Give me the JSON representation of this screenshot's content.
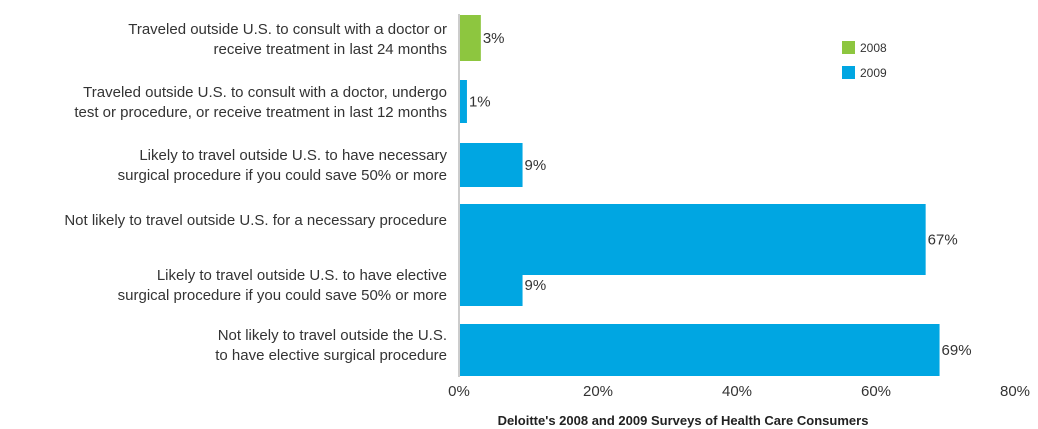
{
  "chart_data": {
    "type": "bar",
    "orientation": "horizontal",
    "title": "",
    "xlabel": "",
    "ylabel": "",
    "xlim": [
      0,
      80
    ],
    "x_ticks": [
      "0%",
      "20%",
      "40%",
      "60%",
      "80%"
    ],
    "x_tick_values": [
      0,
      20,
      40,
      60,
      80
    ],
    "value_suffix": "%",
    "grid": false,
    "legend_position": "top-right",
    "legend": [
      {
        "name": "2008",
        "color": "#8dc63f"
      },
      {
        "name": "2009",
        "color": "#00a6e2"
      }
    ],
    "bars": [
      {
        "label_lines": [
          "Traveled outside U.S. to consult with a doctor or",
          "receive treatment in last 24 months"
        ],
        "value": 3,
        "series": "2008",
        "label": "3%"
      },
      {
        "label_lines": [
          "Traveled outside U.S. to consult with a doctor, undergo",
          "test or procedure, or receive treatment in last 12 months"
        ],
        "value": 1,
        "series": "2009",
        "label": "1%"
      },
      {
        "label_lines": [
          "Likely to travel outside U.S. to have necessary",
          "surgical procedure if you could save 50% or more"
        ],
        "value": 9,
        "series": "2009",
        "label": "9%"
      },
      {
        "label_lines": [
          "Not likely to travel outside U.S. for a necessary procedure"
        ],
        "value": 67,
        "series": "2009",
        "label": "67%"
      },
      {
        "label_lines": [
          "Likely to travel outside U.S. to have elective",
          "surgical procedure if you could save 50% or more"
        ],
        "value": 9,
        "series": "2009",
        "label": "9%"
      },
      {
        "label_lines": [
          "Not likely to travel outside the U.S.",
          "to have elective surgical procedure"
        ],
        "value": 69,
        "series": "2009",
        "label": "69%"
      }
    ],
    "source": "Deloitte's 2008 and 2009 Surveys of Health Care Consumers"
  }
}
